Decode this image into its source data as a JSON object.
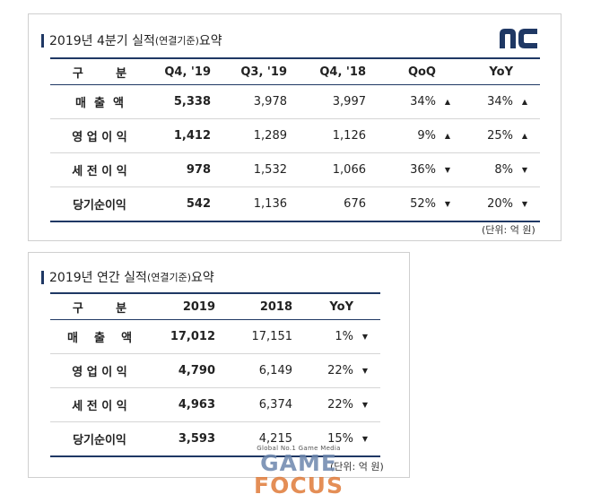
{
  "quarterly": {
    "title_main": "2019년 4분기 실적",
    "title_small": "(연결기준)",
    "title_tail": " 요약",
    "unit": "(단위: 억 원)",
    "headers": [
      "구        분",
      "Q4, '19",
      "Q3, '19",
      "Q4, '18",
      "QoQ",
      "YoY"
    ],
    "rows": [
      {
        "label": "매  출  액",
        "q4_19": "5,338",
        "q3_19": "3,978",
        "q4_18": "3,997",
        "qoq": "34%",
        "qoq_arrow": "▲",
        "yoy": "34%",
        "yoy_arrow": "▲"
      },
      {
        "label": "영 업 이 익",
        "q4_19": "1,412",
        "q3_19": "1,289",
        "q4_18": "1,126",
        "qoq": "9%",
        "qoq_arrow": "▲",
        "yoy": "25%",
        "yoy_arrow": "▲"
      },
      {
        "label": "세 전 이 익",
        "q4_19": "978",
        "q3_19": "1,532",
        "q4_18": "1,066",
        "qoq": "36%",
        "qoq_arrow": "▼",
        "yoy": "8%",
        "yoy_arrow": "▼"
      },
      {
        "label": "당기순이익",
        "q4_19": "542",
        "q3_19": "1,136",
        "q4_18": "676",
        "qoq": "52%",
        "qoq_arrow": "▼",
        "yoy": "20%",
        "yoy_arrow": "▼"
      }
    ]
  },
  "annual": {
    "title_main": "2019년 연간 실적",
    "title_small": "(연결기준)",
    "title_tail": " 요약",
    "unit": "(단위: 억 원)",
    "headers": [
      "구        분",
      "2019",
      "2018",
      "YoY"
    ],
    "rows": [
      {
        "label": "매    출    액",
        "y2019": "17,012",
        "y2018": "17,151",
        "yoy": "1%",
        "yoy_arrow": "▼"
      },
      {
        "label": "영 업 이 익",
        "y2019": "4,790",
        "y2018": "6,149",
        "yoy": "22%",
        "yoy_arrow": "▼"
      },
      {
        "label": "세 전 이 익",
        "y2019": "4,963",
        "y2018": "6,374",
        "yoy": "22%",
        "yoy_arrow": "▼"
      },
      {
        "label": "당기순이익",
        "y2019": "3,593",
        "y2018": "4,215",
        "yoy": "15%",
        "yoy_arrow": "▼"
      }
    ]
  },
  "logo": {
    "text": "nc",
    "color": "#1f3864"
  },
  "watermark": {
    "tagline": "Global No.1 Game Media",
    "word1": "GAME",
    "word2": "FOCUS"
  },
  "colors": {
    "navy": "#1f3864",
    "arrow": "#222222"
  }
}
